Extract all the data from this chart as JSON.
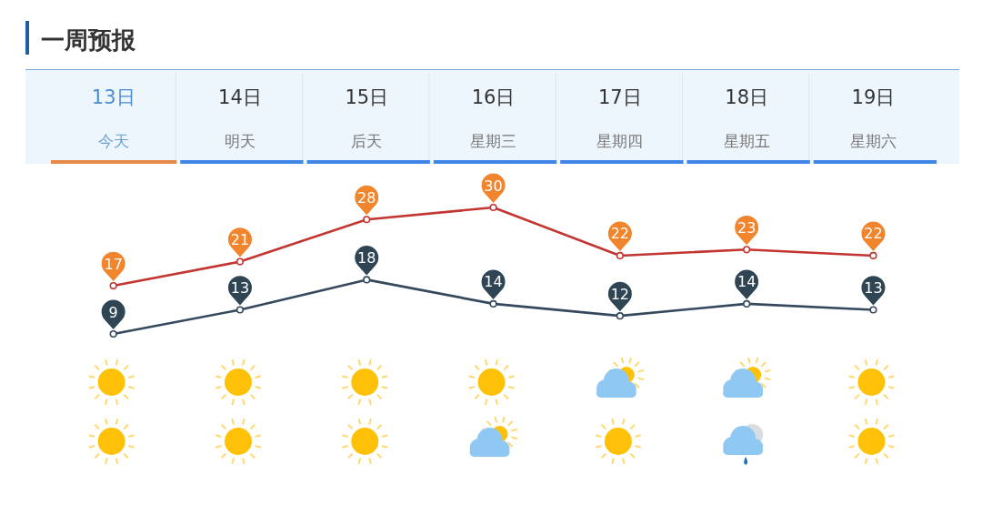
{
  "chart_data": {
    "type": "line",
    "title": "一周预报",
    "categories": [
      "13日今天",
      "14日明天",
      "15日后天",
      "16日星期三",
      "17日星期四",
      "18日星期五",
      "19日星期六"
    ],
    "series": [
      {
        "color": "#c23531",
        "values": [
          17,
          21,
          28,
          30,
          22,
          23,
          22
        ]
      },
      {
        "color": "#34495e",
        "values": [
          9,
          13,
          18,
          14,
          12,
          14,
          13
        ]
      }
    ],
    "marker": "circle",
    "data_labels": true
  }
}
